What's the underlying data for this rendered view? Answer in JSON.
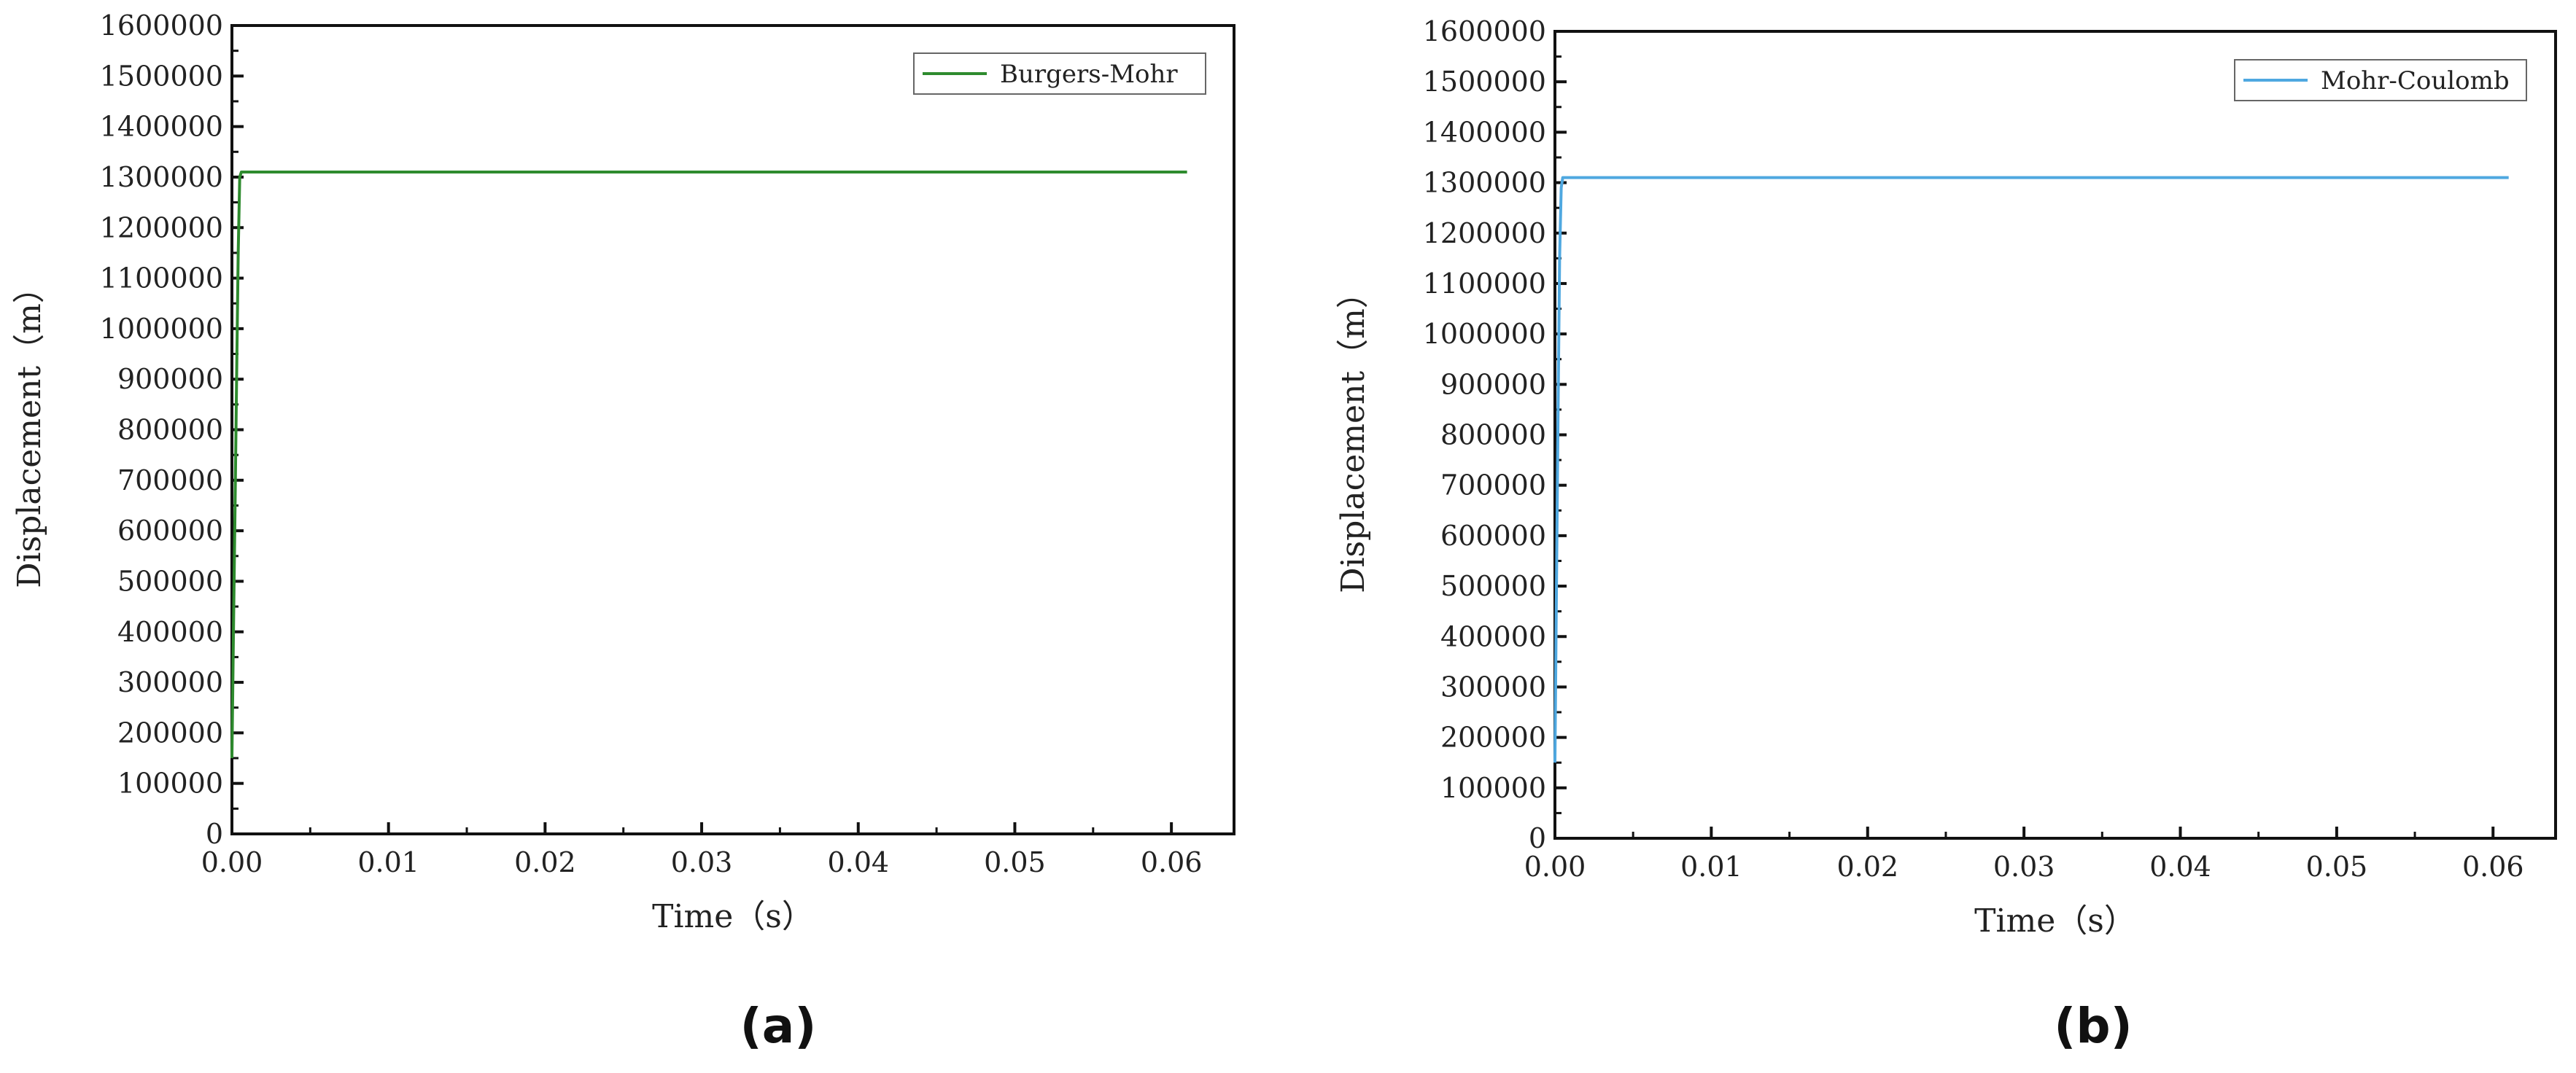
{
  "chart_data": [
    {
      "type": "line",
      "caption": "(a)",
      "xlabel": "Time（s）",
      "ylabel": "Displacement（m）",
      "xlim": [
        0,
        0.064
      ],
      "ylim": [
        0,
        1600000
      ],
      "xticks": [
        0.0,
        0.01,
        0.02,
        0.03,
        0.04,
        0.05,
        0.06
      ],
      "xtick_labels": [
        "0.00",
        "0.01",
        "0.02",
        "0.03",
        "0.04",
        "0.05",
        "0.06"
      ],
      "yticks": [
        0,
        100000,
        200000,
        300000,
        400000,
        500000,
        600000,
        700000,
        800000,
        900000,
        1000000,
        1100000,
        1200000,
        1300000,
        1400000,
        1500000,
        1600000
      ],
      "ytick_labels": [
        "0",
        "100000",
        "200000",
        "300000",
        "400000",
        "500000",
        "600000",
        "700000",
        "800000",
        "900000",
        "1000000",
        "1100000",
        "1200000",
        "1300000",
        "1400000",
        "1500000",
        "1600000"
      ],
      "legend_position": "top-right",
      "grid": false,
      "series": [
        {
          "name": "Burgers-Mohr",
          "color": "#2e8b2e",
          "x": [
            0,
            0.0001,
            0.0002,
            0.0003,
            0.0004,
            0.0005,
            0.0006,
            0.061
          ],
          "y": [
            150000,
            400000,
            650000,
            900000,
            1150000,
            1300000,
            1310000,
            1310000
          ]
        }
      ]
    },
    {
      "type": "line",
      "caption": "(b)",
      "xlabel": "Time（s）",
      "ylabel": "Displacement（m）",
      "xlim": [
        0,
        0.064
      ],
      "ylim": [
        0,
        1600000
      ],
      "xticks": [
        0.0,
        0.01,
        0.02,
        0.03,
        0.04,
        0.05,
        0.06
      ],
      "xtick_labels": [
        "0.00",
        "0.01",
        "0.02",
        "0.03",
        "0.04",
        "0.05",
        "0.06"
      ],
      "yticks": [
        0,
        100000,
        200000,
        300000,
        400000,
        500000,
        600000,
        700000,
        800000,
        900000,
        1000000,
        1100000,
        1200000,
        1300000,
        1400000,
        1500000,
        1600000
      ],
      "ytick_labels": [
        "0",
        "100000",
        "200000",
        "300000",
        "400000",
        "500000",
        "600000",
        "700000",
        "800000",
        "900000",
        "1000000",
        "1100000",
        "1200000",
        "1300000",
        "1400000",
        "1500000",
        "1600000"
      ],
      "legend_position": "top-right",
      "grid": false,
      "series": [
        {
          "name": "Mohr-Coulomb",
          "color": "#4fa8e0",
          "x": [
            0,
            0.0001,
            0.0002,
            0.0003,
            0.0004,
            0.0005,
            0.061
          ],
          "y": [
            150000,
            500000,
            850000,
            1150000,
            1290000,
            1310000,
            1310000
          ]
        }
      ]
    }
  ]
}
